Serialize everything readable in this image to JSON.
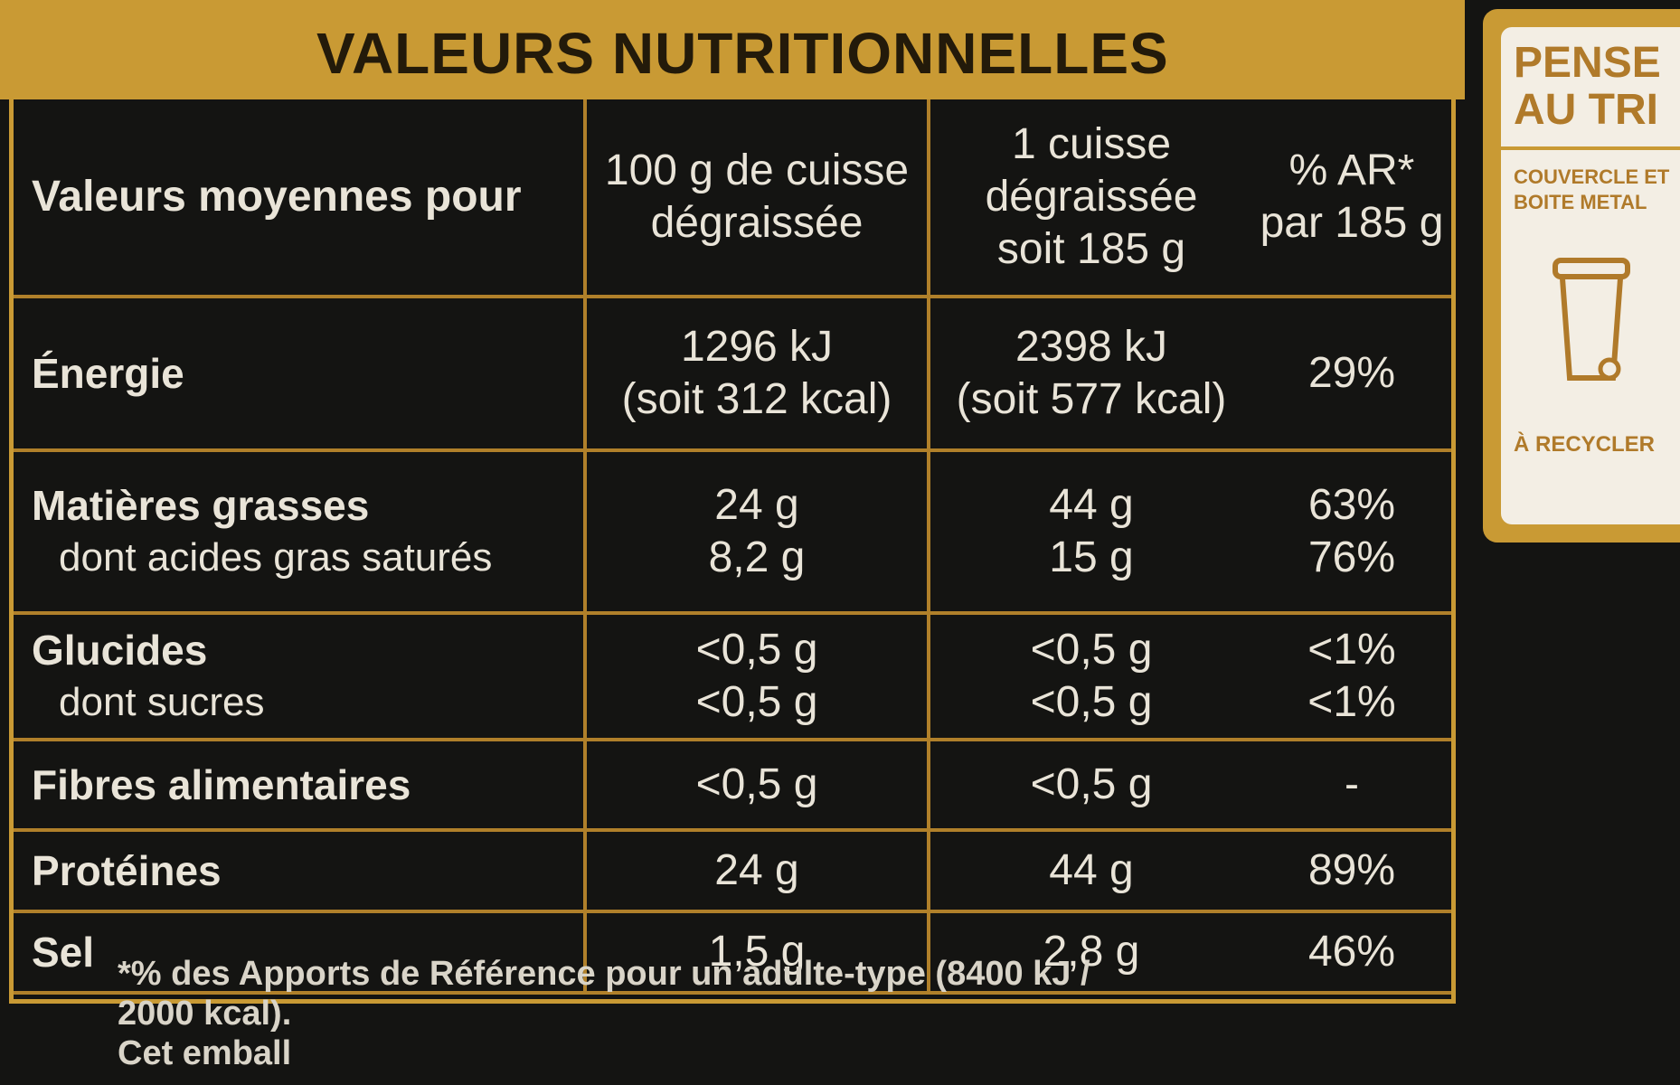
{
  "title": "VALEURS NUTRITIONNELLES",
  "header": {
    "label": [
      "Valeurs moyennes pour"
    ],
    "per100": [
      "100 g de cuisse",
      "dégraissée"
    ],
    "portion": [
      "1 cuisse",
      "dégraissée",
      "soit 185 g"
    ],
    "ar": [
      "% AR*",
      "par 185 g"
    ]
  },
  "rows": [
    {
      "label": [
        "Énergie"
      ],
      "per100": [
        "1296 kJ",
        "(soit 312 kcal)"
      ],
      "portion": [
        "2398 kJ",
        "(soit 577 kcal)"
      ],
      "ar": [
        "29%"
      ]
    },
    {
      "label": [
        "Matières grasses",
        "dont acides gras saturés"
      ],
      "per100": [
        "24 g",
        "8,2 g"
      ],
      "portion": [
        "44 g",
        "15 g"
      ],
      "ar": [
        "63%",
        "76%"
      ]
    },
    {
      "label": [
        "Glucides",
        "dont sucres"
      ],
      "per100": [
        "<0,5 g",
        "<0,5 g"
      ],
      "portion": [
        "<0,5 g",
        "<0,5 g"
      ],
      "ar": [
        "<1%",
        "<1%"
      ]
    },
    {
      "label": [
        "Fibres alimentaires"
      ],
      "per100": [
        "<0,5 g"
      ],
      "portion": [
        "<0,5 g"
      ],
      "ar": [
        "-"
      ]
    },
    {
      "label": [
        "Protéines"
      ],
      "per100": [
        "24 g"
      ],
      "portion": [
        "44 g"
      ],
      "ar": [
        "89%"
      ]
    },
    {
      "label": [
        "Sel"
      ],
      "per100": [
        "1,5 g"
      ],
      "portion": [
        "2,8 g"
      ],
      "ar": [
        "46%"
      ]
    }
  ],
  "footnote": [
    "*% des Apports de Référence pour un adulte-type (8400 kJ /",
    "2000 kcal).",
    "Cet emball"
  ],
  "recycling": {
    "heading": [
      "PENSE",
      "AU TRI"
    ],
    "item": [
      "COUVERCLE ET",
      "BOITE METAL"
    ],
    "action": "À RECYCLER"
  }
}
